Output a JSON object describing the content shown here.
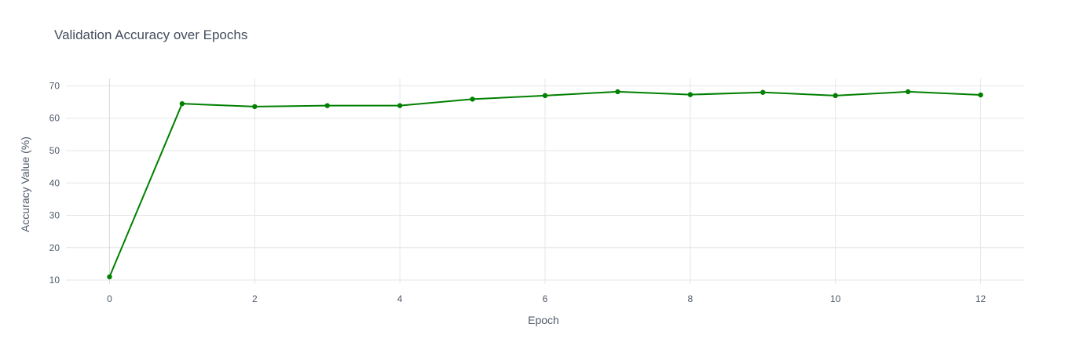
{
  "chart_data": {
    "type": "line",
    "title": "Validation Accuracy over Epochs",
    "xlabel": "Epoch",
    "ylabel": "Accuracy Value (%)",
    "xlim": [
      -0.6,
      12.6
    ],
    "ylim": [
      8.8,
      72.3
    ],
    "x_ticks": [
      0,
      2,
      4,
      6,
      8,
      10,
      12
    ],
    "y_ticks": [
      10,
      20,
      30,
      40,
      50,
      60,
      70
    ],
    "grid": true,
    "legend": "none",
    "series": [
      {
        "color": "#008000",
        "mode": "lines+markers",
        "x": [
          0,
          1,
          2,
          3,
          4,
          5,
          6,
          7,
          8,
          9,
          10,
          11,
          12
        ],
        "y": [
          11.0,
          64.5,
          63.6,
          63.9,
          63.9,
          65.9,
          67.0,
          68.2,
          67.3,
          68.0,
          67.0,
          68.2,
          67.2
        ]
      }
    ]
  }
}
